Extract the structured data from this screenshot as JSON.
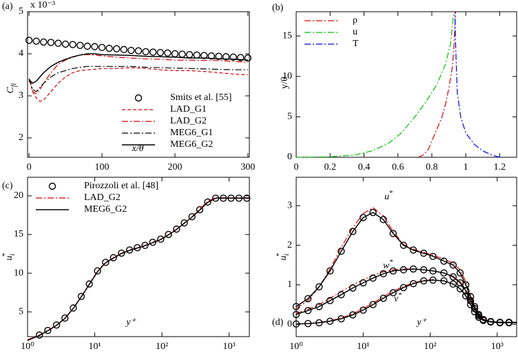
{
  "chart_data": [
    {
      "type": "line",
      "panel_label": "(a)",
      "y_multiplier": "x 10⁻³",
      "xlabel": "x/θ",
      "ylabel": {
        "text": "C",
        "sub": "fi"
      },
      "xlim": [
        -2,
        302
      ],
      "xticks": [
        0,
        100,
        200,
        300
      ],
      "ylim": [
        1.54,
        5
      ],
      "yticks": [
        2,
        3,
        4,
        5
      ],
      "legend": "lower right",
      "x": [
        0,
        2,
        5,
        10,
        15,
        20,
        30,
        40,
        50,
        60,
        70,
        80,
        90,
        100,
        120,
        140,
        160,
        180,
        200,
        220,
        240,
        260,
        280,
        300
      ],
      "series": [
        {
          "name": "Smits et al. [55]",
          "color": "#000000",
          "marker": "circle",
          "x": [
            0,
            10,
            20,
            30,
            40,
            50,
            60,
            70,
            80,
            90,
            100,
            110,
            120,
            130,
            140,
            150,
            160,
            170,
            180,
            190,
            200,
            210,
            220,
            230,
            240,
            250,
            260,
            270,
            280,
            290,
            300
          ],
          "values": [
            4.32,
            4.3,
            4.28,
            4.27,
            4.25,
            4.23,
            4.22,
            4.2,
            4.18,
            4.17,
            4.15,
            4.13,
            4.12,
            4.1,
            4.08,
            4.07,
            4.05,
            4.04,
            4.03,
            4.02,
            4.0,
            3.99,
            3.98,
            3.97,
            3.96,
            3.95,
            3.94,
            3.93,
            3.92,
            3.91,
            3.9
          ]
        },
        {
          "name": "LAD_G1",
          "color": "#d40000",
          "dash": "dash",
          "values": [
            3.35,
            3.3,
            3.1,
            2.95,
            2.87,
            2.9,
            3.1,
            3.3,
            3.45,
            3.55,
            3.6,
            3.62,
            3.63,
            3.65,
            3.65,
            3.67,
            3.65,
            3.62,
            3.6,
            3.6,
            3.58,
            3.55,
            3.52,
            3.5
          ]
        },
        {
          "name": "LAD_G2",
          "color": "#d40000",
          "dash": "dashdot",
          "values": [
            3.4,
            3.35,
            3.1,
            3.05,
            3.15,
            3.3,
            3.55,
            3.75,
            3.85,
            3.92,
            3.97,
            3.98,
            3.97,
            3.95,
            3.92,
            3.9,
            3.88,
            3.87,
            3.85,
            3.85,
            3.84,
            3.84,
            3.82,
            3.8
          ]
        },
        {
          "name": "MEG6_G1",
          "color": "#000000",
          "dash": "dashdot",
          "values": [
            3.4,
            3.3,
            3.15,
            3.1,
            3.2,
            3.3,
            3.45,
            3.55,
            3.6,
            3.65,
            3.68,
            3.7,
            3.7,
            3.7,
            3.7,
            3.7,
            3.68,
            3.67,
            3.66,
            3.65,
            3.64,
            3.63,
            3.62,
            3.62
          ]
        },
        {
          "name": "MEG6_G2",
          "color": "#000000",
          "dash": "solid",
          "values": [
            3.4,
            3.35,
            3.3,
            3.35,
            3.45,
            3.55,
            3.7,
            3.8,
            3.87,
            3.93,
            3.97,
            4.0,
            4.0,
            3.98,
            3.97,
            3.96,
            3.94,
            3.93,
            3.92,
            3.9,
            3.9,
            3.88,
            3.87,
            3.85
          ]
        }
      ]
    },
    {
      "type": "line",
      "panel_label": "(b)",
      "ylabel": "y/θ",
      "xlim": [
        0,
        1.3
      ],
      "xticks": [
        0,
        0.2,
        0.4,
        0.6,
        0.8,
        1,
        1.2
      ],
      "ylim": [
        0,
        18
      ],
      "yticks": [
        0,
        5,
        10,
        15
      ],
      "legend": "upper left",
      "series": [
        {
          "name": "ρ",
          "color": "#d40000",
          "dash": "dashdot",
          "x": [
            0.72,
            0.75,
            0.78,
            0.8,
            0.83,
            0.86,
            0.88,
            0.9,
            0.92,
            0.93,
            0.94
          ],
          "values": [
            0,
            0.3,
            1,
            2,
            3.5,
            5,
            6.5,
            8.5,
            11,
            13.5,
            18
          ]
        },
        {
          "name": "u",
          "color": "#00c000",
          "dash": "dashdot",
          "x": [
            0,
            0.2,
            0.35,
            0.45,
            0.55,
            0.62,
            0.7,
            0.77,
            0.83,
            0.88,
            0.91,
            0.93
          ],
          "values": [
            0,
            0.05,
            0.3,
            0.8,
            1.8,
            3,
            5,
            7,
            9,
            11.5,
            14,
            18
          ]
        },
        {
          "name": "T",
          "color": "#0000e0",
          "dash": "dashdot",
          "x": [
            1.2,
            1.15,
            1.1,
            1.05,
            1.0,
            0.97,
            0.95,
            0.945,
            0.94,
            0.935
          ],
          "values": [
            0,
            0.3,
            0.8,
            1.6,
            3,
            5,
            8,
            11,
            14,
            18
          ]
        }
      ]
    },
    {
      "type": "line",
      "panel_label": "(c)",
      "xlabel": "y⁺",
      "ylabel": {
        "text": "u",
        "sub": "i",
        "sup": "*"
      },
      "xscale": "log",
      "xlim": [
        1,
        2000
      ],
      "xticks": [
        {
          "value": 1,
          "label": "10⁰"
        },
        {
          "value": 10,
          "label": "10¹"
        },
        {
          "value": 100,
          "label": "10²"
        },
        {
          "value": 1000,
          "label": "10³"
        }
      ],
      "ylim": [
        1.8,
        22.4
      ],
      "yticks": [
        5,
        10,
        15,
        20
      ],
      "legend": "upper left",
      "x": [
        1,
        1.5,
        2,
        2.7,
        3.6,
        4.8,
        6.3,
        8.3,
        11,
        14.5,
        19,
        25,
        33,
        43,
        56,
        73,
        96,
        125,
        165,
        215,
        280,
        365,
        480,
        630,
        820,
        1070,
        1400,
        2000
      ],
      "series": [
        {
          "name": "Pirozzoli et al. [48]",
          "color": "#000000",
          "marker": "circle",
          "x": [
            1.5,
            2,
            2.7,
            3.6,
            4.8,
            6.3,
            8.3,
            11,
            14.5,
            19,
            25,
            33,
            43,
            56,
            73,
            96,
            125,
            165,
            215,
            280,
            365,
            480,
            630,
            820,
            1070,
            1400,
            1830
          ],
          "values": [
            2.0,
            2.6,
            3.3,
            4.2,
            5.5,
            7.0,
            8.6,
            10.3,
            11.4,
            12.0,
            12.6,
            13.0,
            13.3,
            13.6,
            14.0,
            14.4,
            15.0,
            15.7,
            16.5,
            17.3,
            18.2,
            19.2,
            19.7,
            19.7,
            19.7,
            19.7,
            19.7
          ]
        },
        {
          "name": "LAD_G2",
          "color": "#d40000",
          "dash": "dashdot",
          "values": [
            1.4,
            2.0,
            2.6,
            3.3,
            4.2,
            5.5,
            7.0,
            8.6,
            10.3,
            11.4,
            12.0,
            12.6,
            13.0,
            13.3,
            13.6,
            14.0,
            14.4,
            15.0,
            15.7,
            16.5,
            17.3,
            18.3,
            19.3,
            19.75,
            19.75,
            19.75,
            19.75,
            19.75
          ]
        },
        {
          "name": "MEG6_G2",
          "color": "#000000",
          "dash": "solid",
          "values": [
            1.3,
            1.95,
            2.55,
            3.25,
            4.15,
            5.45,
            6.95,
            8.55,
            10.2,
            11.35,
            11.95,
            12.55,
            12.95,
            13.25,
            13.55,
            13.95,
            14.35,
            14.95,
            15.65,
            16.45,
            17.25,
            18.15,
            19.15,
            19.7,
            19.7,
            19.7,
            19.7,
            19.7
          ]
        }
      ]
    },
    {
      "type": "line",
      "panel_label": "(d)",
      "xlabel": "y⁺",
      "ylabel": {
        "text": "u",
        "sub": "i",
        "sup": "*"
      },
      "xscale": "log",
      "xlim": [
        1,
        1950
      ],
      "xticks": [
        {
          "value": 1,
          "label": "10⁰"
        },
        {
          "value": 10,
          "label": "10¹"
        },
        {
          "value": 100,
          "label": "10²"
        },
        {
          "value": 1000,
          "label": "10³"
        }
      ],
      "ylim": [
        -0.31,
        3.72
      ],
      "yticks": [
        0,
        1,
        2,
        3
      ],
      "legend": "none",
      "annotations": [
        {
          "text": "u",
          "sup": "*"
        },
        {
          "text": "w",
          "sup": "*"
        },
        {
          "text": "v",
          "sup": "*"
        }
      ],
      "x": [
        1,
        1.5,
        2.2,
        3.2,
        4.7,
        7,
        10,
        14,
        20,
        28,
        40,
        56,
        80,
        110,
        160,
        220,
        280,
        340,
        400,
        460,
        530,
        620,
        800,
        1100,
        1950
      ],
      "series": [
        {
          "color": "#d40000",
          "dash": "dashdot",
          "values": [
            0.4,
            0.6,
            0.95,
            1.4,
            1.95,
            2.45,
            2.8,
            2.95,
            2.75,
            2.35,
            2.02,
            1.9,
            1.82,
            1.75,
            1.65,
            1.55,
            1.38,
            1.08,
            0.75,
            0.48,
            0.27,
            0.13,
            0.07,
            0.05,
            0.05
          ]
        },
        {
          "color": "#d40000",
          "dash": "dashdot",
          "values": [
            0.28,
            0.38,
            0.5,
            0.66,
            0.83,
            1.0,
            1.13,
            1.24,
            1.33,
            1.38,
            1.4,
            1.4,
            1.38,
            1.35,
            1.3,
            1.22,
            1.08,
            0.88,
            0.63,
            0.42,
            0.23,
            0.12,
            0.07,
            0.05,
            0.05
          ]
        },
        {
          "color": "#d40000",
          "dash": "dashdot",
          "values": [
            0.01,
            0.02,
            0.05,
            0.09,
            0.16,
            0.27,
            0.4,
            0.54,
            0.7,
            0.84,
            0.96,
            1.05,
            1.11,
            1.13,
            1.1,
            1.02,
            0.9,
            0.73,
            0.52,
            0.33,
            0.19,
            0.1,
            0.06,
            0.04,
            0.04
          ]
        },
        {
          "color": "#000000",
          "dash": "solid",
          "values": [
            0.45,
            0.65,
            0.95,
            1.35,
            1.85,
            2.35,
            2.7,
            2.83,
            2.65,
            2.3,
            2.0,
            1.88,
            1.8,
            1.72,
            1.6,
            1.5,
            1.3,
            1.0,
            0.7,
            0.45,
            0.25,
            0.12,
            0.07,
            0.05,
            0.05
          ]
        },
        {
          "color": "#000000",
          "dash": "solid",
          "values": [
            0.25,
            0.35,
            0.45,
            0.6,
            0.75,
            0.92,
            1.05,
            1.17,
            1.28,
            1.35,
            1.38,
            1.4,
            1.38,
            1.35,
            1.3,
            1.2,
            1.05,
            0.85,
            0.6,
            0.4,
            0.22,
            0.12,
            0.07,
            0.05,
            0.05
          ]
        },
        {
          "color": "#000000",
          "dash": "solid",
          "values": [
            0.01,
            0.02,
            0.04,
            0.08,
            0.14,
            0.24,
            0.36,
            0.5,
            0.66,
            0.8,
            0.93,
            1.03,
            1.1,
            1.12,
            1.1,
            1.02,
            0.9,
            0.72,
            0.5,
            0.32,
            0.18,
            0.1,
            0.06,
            0.04,
            0.04
          ]
        },
        {
          "color": "#000000",
          "marker": "circle",
          "x": [
            1,
            1.5,
            2.2,
            3.2,
            4.7,
            7,
            10,
            14,
            20,
            28,
            40,
            56,
            80,
            110,
            160,
            220,
            280,
            340,
            400,
            460,
            530,
            620,
            800,
            1100,
            1500
          ],
          "values": [
            0.45,
            0.65,
            0.95,
            1.35,
            1.85,
            2.35,
            2.7,
            2.83,
            2.65,
            2.3,
            2.0,
            1.88,
            1.8,
            1.72,
            1.6,
            1.5,
            1.3,
            1.0,
            0.7,
            0.45,
            0.25,
            0.12,
            0.07,
            0.05,
            0.05
          ]
        },
        {
          "color": "#000000",
          "marker": "circle",
          "x": [
            1,
            1.5,
            2.2,
            3.2,
            4.7,
            7,
            10,
            14,
            20,
            28,
            40,
            56,
            80,
            110,
            160,
            220,
            280,
            340,
            400,
            460,
            530,
            620,
            800,
            1100,
            1500
          ],
          "values": [
            0.25,
            0.35,
            0.45,
            0.6,
            0.75,
            0.92,
            1.05,
            1.17,
            1.28,
            1.35,
            1.38,
            1.4,
            1.38,
            1.35,
            1.3,
            1.2,
            1.05,
            0.85,
            0.6,
            0.4,
            0.22,
            0.12,
            0.07,
            0.05,
            0.05
          ]
        },
        {
          "color": "#000000",
          "marker": "circle",
          "x": [
            1,
            1.5,
            2.2,
            3.2,
            4.7,
            7,
            10,
            14,
            20,
            28,
            40,
            56,
            80,
            110,
            160,
            220,
            280,
            340,
            400,
            460,
            530,
            620,
            800,
            1100,
            1500
          ],
          "values": [
            0.01,
            0.02,
            0.04,
            0.08,
            0.14,
            0.24,
            0.36,
            0.5,
            0.66,
            0.8,
            0.93,
            1.03,
            1.1,
            1.12,
            1.1,
            1.02,
            0.9,
            0.72,
            0.5,
            0.32,
            0.18,
            0.1,
            0.06,
            0.04,
            0.04
          ]
        }
      ]
    }
  ]
}
